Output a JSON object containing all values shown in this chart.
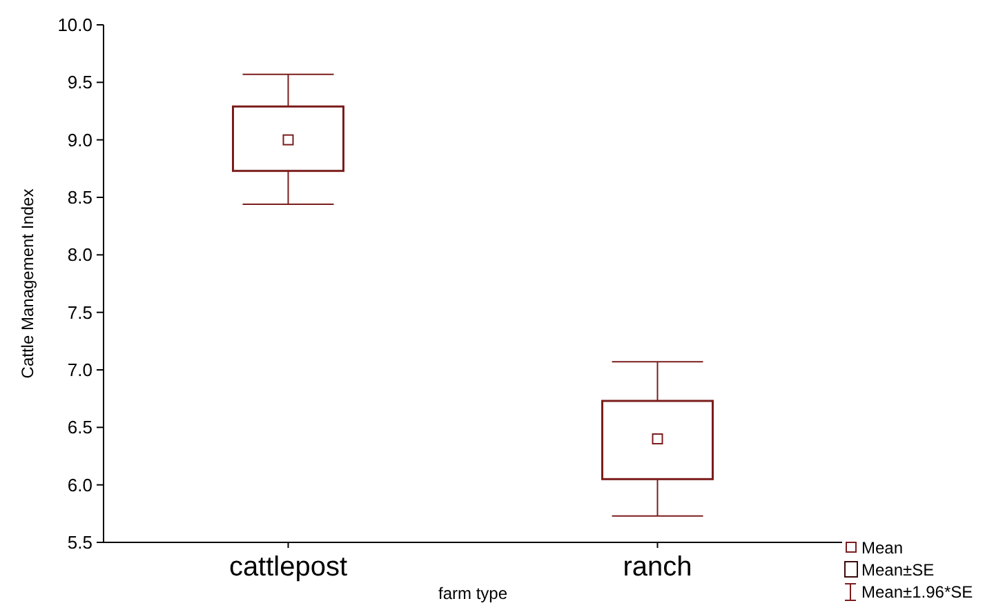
{
  "chart_data": {
    "type": "box",
    "xlabel": "farm type",
    "ylabel": "Cattle Management Index",
    "categories": [
      "cattlepost",
      "ranch"
    ],
    "boxes": [
      {
        "low": 8.44,
        "q1": 8.73,
        "median": 9.0,
        "q3": 9.29,
        "high": 9.57
      },
      {
        "low": 5.73,
        "q1": 6.05,
        "median": 6.4,
        "q3": 6.73,
        "high": 7.07
      }
    ],
    "color": "#7b1c1c",
    "ylim": [
      5.5,
      10.0
    ],
    "yticks": [
      {
        "value": 5.5,
        "label": "5.5"
      },
      {
        "value": 6,
        "label": "6.0"
      },
      {
        "value": 6.5,
        "label": "6.5"
      },
      {
        "value": 7,
        "label": "7.0"
      },
      {
        "value": 7.5,
        "label": "7.5"
      },
      {
        "value": 8,
        "label": "8.0"
      },
      {
        "value": 8.5,
        "label": "8.5"
      },
      {
        "value": 9,
        "label": "9.0"
      },
      {
        "value": 9.5,
        "label": "9.5"
      },
      {
        "value": 10,
        "label": "10.0"
      }
    ],
    "grid": false,
    "annotations": [
      "Mean",
      "Mean±SE",
      "Mean±1.96*SE"
    ]
  }
}
